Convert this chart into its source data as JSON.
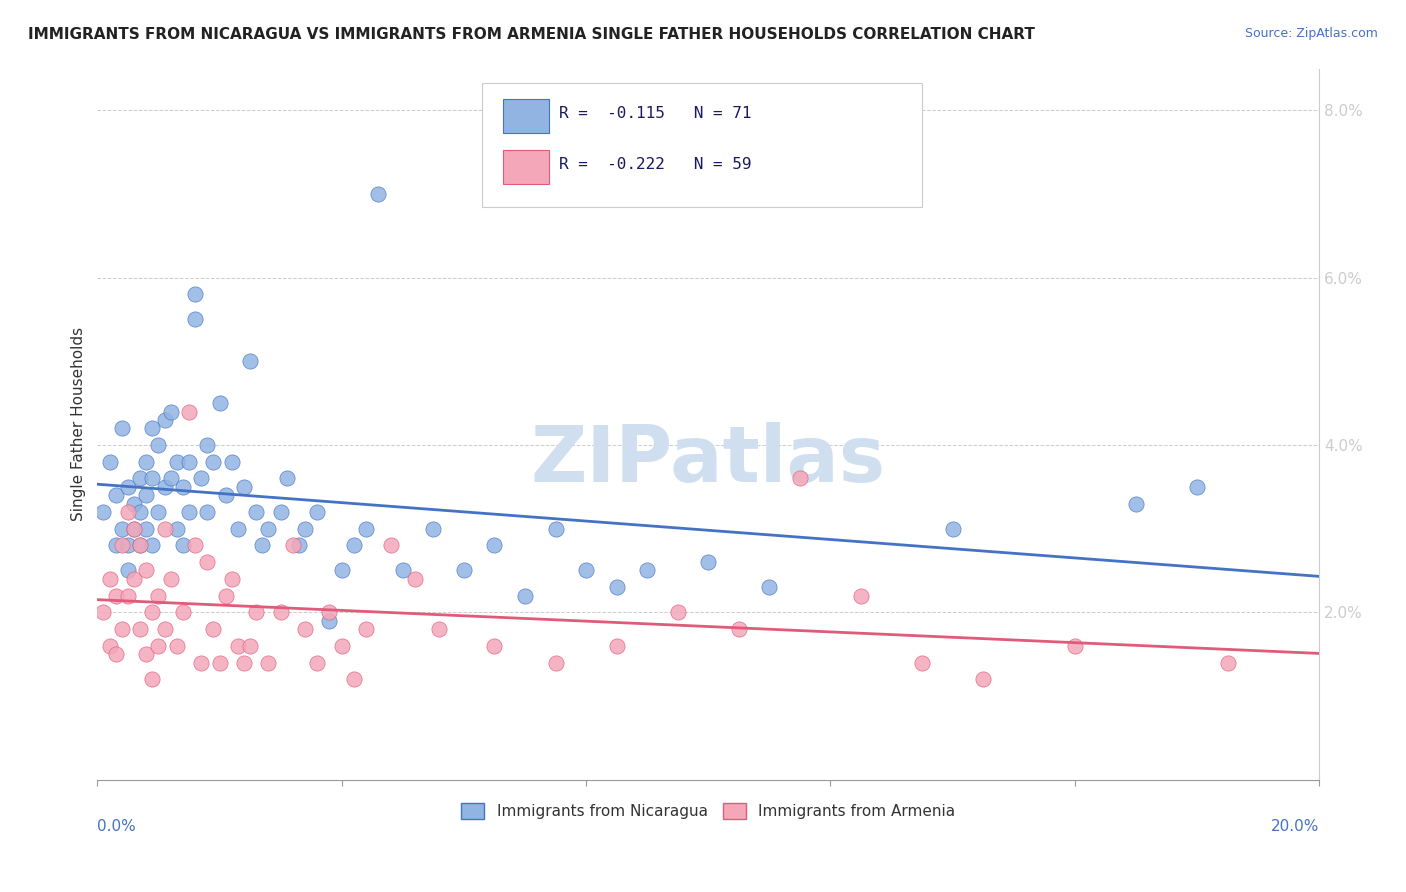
{
  "title": "IMMIGRANTS FROM NICARAGUA VS IMMIGRANTS FROM ARMENIA SINGLE FATHER HOUSEHOLDS CORRELATION CHART",
  "source": "Source: ZipAtlas.com",
  "ylabel": "Single Father Households",
  "legend_nicaragua": "Immigrants from Nicaragua",
  "legend_armenia": "Immigrants from Armenia",
  "r_nicaragua": -0.115,
  "n_nicaragua": 71,
  "r_armenia": -0.222,
  "n_armenia": 59,
  "color_nicaragua": "#92b4e3",
  "color_armenia": "#f4a7b9",
  "line_color_nicaragua": "#4472c4",
  "line_color_armenia": "#e05a7a",
  "watermark_color": "#d0dff0",
  "background_color": "#ffffff",
  "xlim": [
    0.0,
    0.2
  ],
  "ylim": [
    0.0,
    0.085
  ],
  "yticks": [
    0.0,
    0.02,
    0.04,
    0.06,
    0.08
  ],
  "ytick_labels": [
    "",
    "2.0%",
    "4.0%",
    "6.0%",
    "8.0%"
  ],
  "nicaragua_x": [
    0.001,
    0.002,
    0.003,
    0.003,
    0.004,
    0.004,
    0.005,
    0.005,
    0.005,
    0.006,
    0.006,
    0.007,
    0.007,
    0.007,
    0.008,
    0.008,
    0.008,
    0.009,
    0.009,
    0.009,
    0.01,
    0.01,
    0.011,
    0.011,
    0.012,
    0.012,
    0.013,
    0.013,
    0.014,
    0.014,
    0.015,
    0.015,
    0.016,
    0.016,
    0.017,
    0.018,
    0.018,
    0.019,
    0.02,
    0.021,
    0.022,
    0.023,
    0.024,
    0.025,
    0.026,
    0.027,
    0.028,
    0.03,
    0.031,
    0.033,
    0.034,
    0.036,
    0.038,
    0.04,
    0.042,
    0.044,
    0.046,
    0.05,
    0.055,
    0.06,
    0.065,
    0.07,
    0.075,
    0.08,
    0.085,
    0.09,
    0.1,
    0.11,
    0.14,
    0.17,
    0.18
  ],
  "nicaragua_y": [
    0.032,
    0.038,
    0.028,
    0.034,
    0.042,
    0.03,
    0.035,
    0.028,
    0.025,
    0.033,
    0.03,
    0.036,
    0.032,
    0.028,
    0.038,
    0.034,
    0.03,
    0.042,
    0.036,
    0.028,
    0.04,
    0.032,
    0.043,
    0.035,
    0.044,
    0.036,
    0.038,
    0.03,
    0.035,
    0.028,
    0.032,
    0.038,
    0.055,
    0.058,
    0.036,
    0.04,
    0.032,
    0.038,
    0.045,
    0.034,
    0.038,
    0.03,
    0.035,
    0.05,
    0.032,
    0.028,
    0.03,
    0.032,
    0.036,
    0.028,
    0.03,
    0.032,
    0.019,
    0.025,
    0.028,
    0.03,
    0.07,
    0.025,
    0.03,
    0.025,
    0.028,
    0.022,
    0.03,
    0.025,
    0.023,
    0.025,
    0.026,
    0.023,
    0.03,
    0.033,
    0.035
  ],
  "armenia_x": [
    0.001,
    0.002,
    0.002,
    0.003,
    0.003,
    0.004,
    0.004,
    0.005,
    0.005,
    0.006,
    0.006,
    0.007,
    0.007,
    0.008,
    0.008,
    0.009,
    0.009,
    0.01,
    0.01,
    0.011,
    0.011,
    0.012,
    0.013,
    0.014,
    0.015,
    0.016,
    0.017,
    0.018,
    0.019,
    0.02,
    0.021,
    0.022,
    0.023,
    0.024,
    0.025,
    0.026,
    0.028,
    0.03,
    0.032,
    0.034,
    0.036,
    0.038,
    0.04,
    0.042,
    0.044,
    0.048,
    0.052,
    0.056,
    0.065,
    0.075,
    0.085,
    0.095,
    0.105,
    0.115,
    0.125,
    0.135,
    0.145,
    0.16,
    0.185
  ],
  "armenia_y": [
    0.02,
    0.016,
    0.024,
    0.015,
    0.022,
    0.028,
    0.018,
    0.032,
    0.022,
    0.03,
    0.024,
    0.018,
    0.028,
    0.015,
    0.025,
    0.02,
    0.012,
    0.016,
    0.022,
    0.03,
    0.018,
    0.024,
    0.016,
    0.02,
    0.044,
    0.028,
    0.014,
    0.026,
    0.018,
    0.014,
    0.022,
    0.024,
    0.016,
    0.014,
    0.016,
    0.02,
    0.014,
    0.02,
    0.028,
    0.018,
    0.014,
    0.02,
    0.016,
    0.012,
    0.018,
    0.028,
    0.024,
    0.018,
    0.016,
    0.014,
    0.016,
    0.02,
    0.018,
    0.036,
    0.022,
    0.014,
    0.012,
    0.016,
    0.014
  ]
}
